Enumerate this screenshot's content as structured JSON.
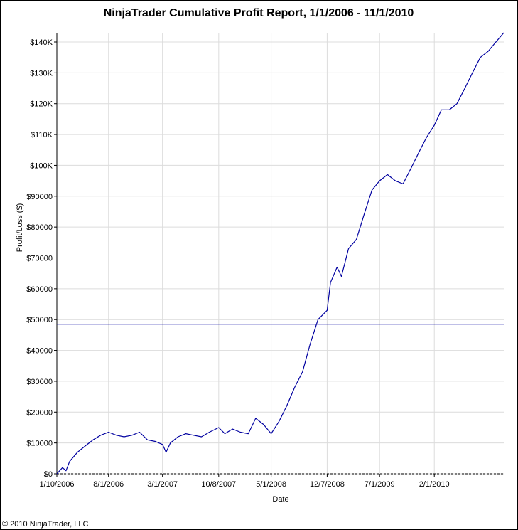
{
  "chart_data": {
    "type": "line",
    "title": "NinjaTrader Cumulative Profit Report, 1/1/2006 - 11/1/2010",
    "xlabel": "Date",
    "ylabel": "Profit/Loss ($)",
    "ylim": [
      0,
      143000
    ],
    "xlim": [
      "2006-01-10",
      "2010-11-01"
    ],
    "grid": true,
    "legend": "none",
    "y_ticks": [
      0,
      10000,
      20000,
      30000,
      40000,
      50000,
      60000,
      70000,
      80000,
      90000,
      100000,
      110000,
      120000,
      130000,
      140000
    ],
    "y_tick_labels": [
      "$0",
      "$10000",
      "$20000",
      "$30000",
      "$40000",
      "$50000",
      "$60000",
      "$70000",
      "$80000",
      "$90000",
      "$100K",
      "$110K",
      "$120K",
      "$130K",
      "$140K"
    ],
    "x_ticks": [
      "2006-01-10",
      "2006-08-01",
      "2007-03-01",
      "2007-10-08",
      "2008-05-01",
      "2008-12-07",
      "2009-07-01",
      "2010-02-01"
    ],
    "x_tick_labels": [
      "1/10/2006",
      "8/1/2006",
      "3/1/2007",
      "10/8/2007",
      "5/1/2008",
      "12/7/2008",
      "7/1/2009",
      "2/1/2010"
    ],
    "reference_line": 48500,
    "line_color": "#0000a0",
    "series": [
      {
        "x": [
          "2006-01-10",
          "2006-02-01",
          "2006-02-15",
          "2006-03-01",
          "2006-04-01",
          "2006-05-01",
          "2006-06-01",
          "2006-07-01",
          "2006-08-01",
          "2006-09-01",
          "2006-10-01",
          "2006-11-01",
          "2006-12-01",
          "2007-01-01",
          "2007-02-01",
          "2007-03-01",
          "2007-03-15",
          "2007-04-01",
          "2007-05-01",
          "2007-06-01",
          "2007-07-01",
          "2007-08-01",
          "2007-09-01",
          "2007-10-08",
          "2007-11-01",
          "2007-12-01",
          "2008-01-01",
          "2008-02-01",
          "2008-03-01",
          "2008-04-01",
          "2008-05-01",
          "2008-06-01",
          "2008-07-01",
          "2008-08-01",
          "2008-09-01",
          "2008-10-01",
          "2008-11-01",
          "2008-12-07",
          "2008-12-20",
          "2009-01-15",
          "2009-02-01",
          "2009-03-01",
          "2009-04-01",
          "2009-05-01",
          "2009-06-01",
          "2009-07-01",
          "2009-08-01",
          "2009-09-01",
          "2009-10-01",
          "2009-11-01",
          "2009-12-01",
          "2010-01-01",
          "2010-02-01",
          "2010-03-01",
          "2010-04-01",
          "2010-05-01",
          "2010-06-01",
          "2010-07-01",
          "2010-08-01",
          "2010-09-01",
          "2010-10-01",
          "2010-11-01"
        ],
        "y": [
          0,
          2000,
          1000,
          4000,
          7000,
          9000,
          11000,
          12500,
          13500,
          12500,
          12000,
          12500,
          13500,
          11000,
          10500,
          9500,
          7000,
          10000,
          12000,
          13000,
          12500,
          12000,
          13500,
          15000,
          13000,
          14500,
          13500,
          13000,
          18000,
          16000,
          13000,
          17000,
          22000,
          28000,
          33000,
          42000,
          50000,
          53000,
          62000,
          67000,
          64000,
          73000,
          76000,
          84000,
          92000,
          95000,
          97000,
          95000,
          94000,
          99000,
          104000,
          109000,
          113000,
          118000,
          118000,
          120000,
          125000,
          130000,
          135000,
          137000,
          140000,
          143000
        ]
      }
    ]
  },
  "footer": {
    "copyright": "© 2010 NinjaTrader, LLC"
  }
}
